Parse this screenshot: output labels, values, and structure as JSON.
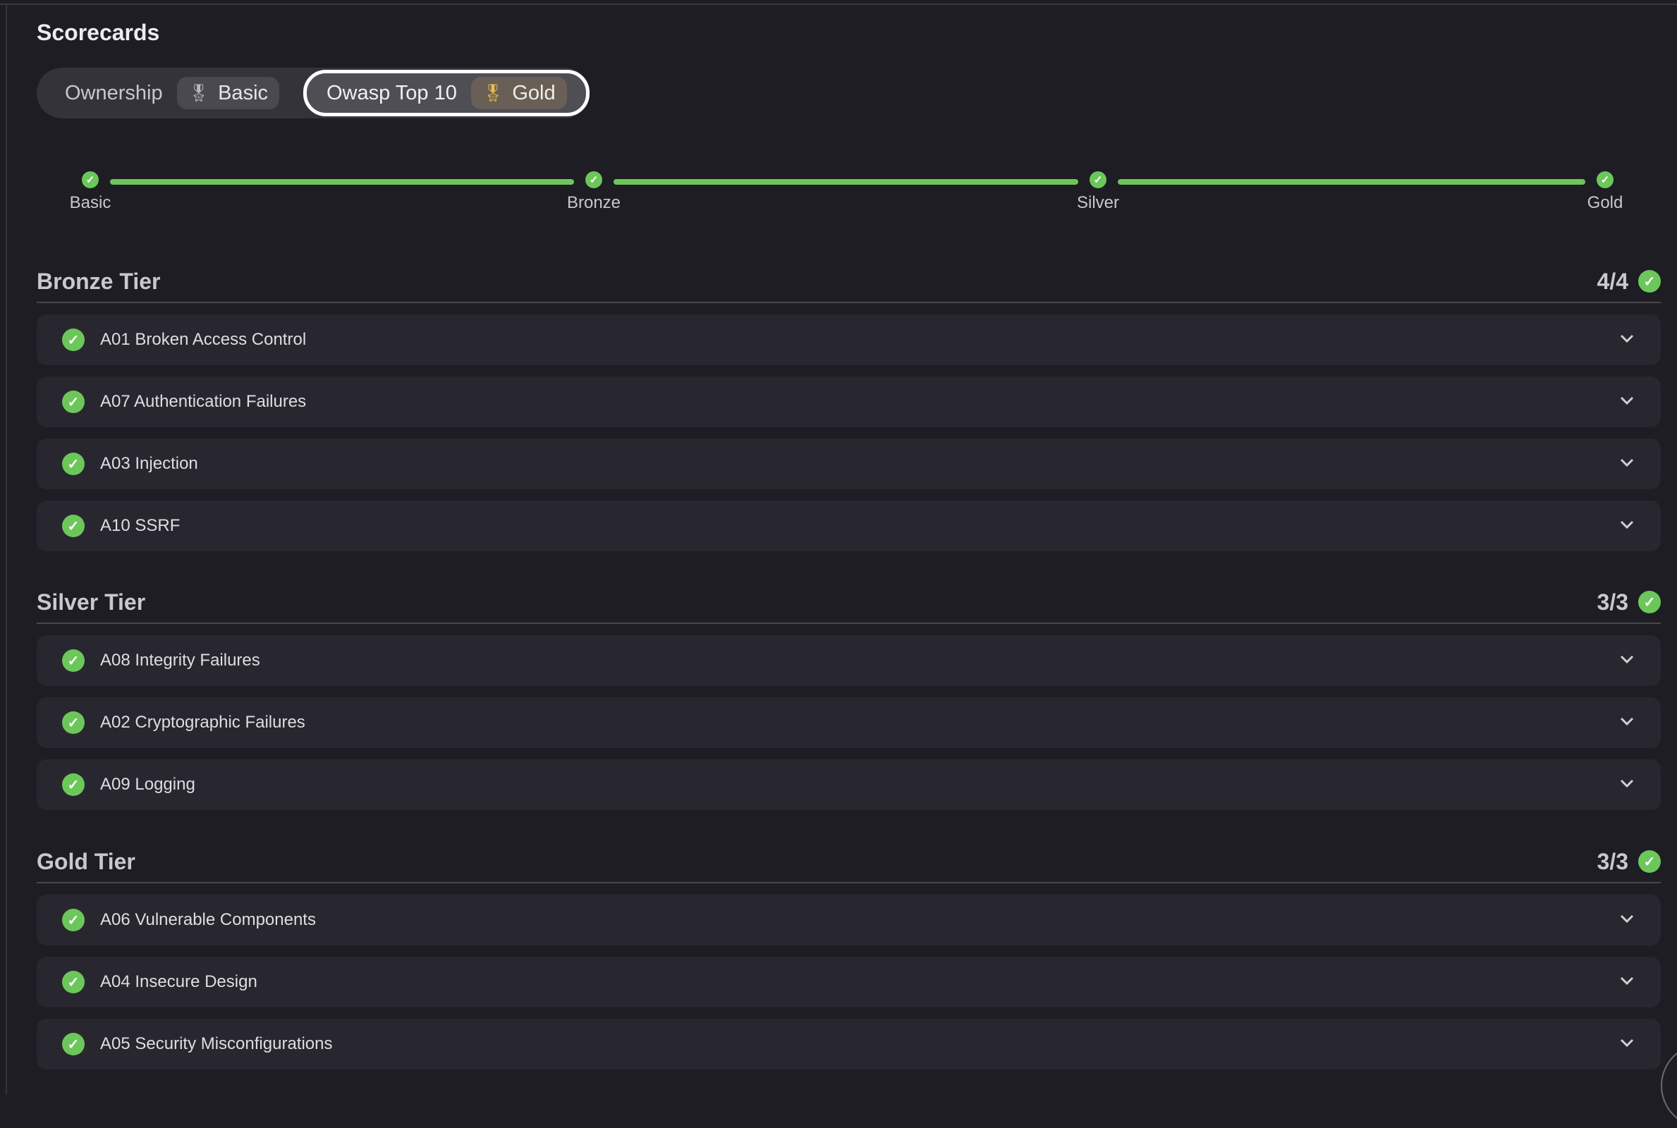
{
  "title": "Scorecards",
  "scorecards": [
    {
      "name": "Ownership",
      "level": "Basic",
      "selected": false
    },
    {
      "name": "Owasp Top 10",
      "level": "Gold",
      "selected": true
    }
  ],
  "progress": {
    "levels": [
      "Basic",
      "Bronze",
      "Silver",
      "Gold"
    ],
    "completed": 4
  },
  "tiers": [
    {
      "title": "Bronze Tier",
      "count": "4/4",
      "rules": [
        "A01 Broken Access Control",
        "A07 Authentication Failures",
        "A03 Injection",
        "A10 SSRF"
      ]
    },
    {
      "title": "Silver Tier",
      "count": "3/3",
      "rules": [
        "A08 Integrity Failures",
        "A02 Cryptographic Failures",
        "A09 Logging"
      ]
    },
    {
      "title": "Gold Tier",
      "count": "3/3",
      "rules": [
        "A06 Vulnerable Components",
        "A04 Insecure Design",
        "A05 Security Misconfigurations"
      ]
    }
  ],
  "colors": {
    "success": "#6cc75a",
    "gold": "#e8c04a",
    "background": "#1e1d24",
    "row": "#28272f"
  }
}
